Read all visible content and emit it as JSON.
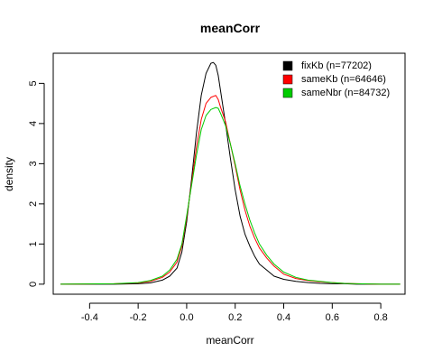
{
  "chart_data": {
    "type": "line",
    "title": "meanCorr",
    "xlabel": "meanCorr",
    "ylabel": "density",
    "xlim": [
      -0.55,
      0.9
    ],
    "ylim": [
      -0.25,
      5.75
    ],
    "x_ticks": [
      -0.4,
      -0.2,
      0.0,
      0.2,
      0.4,
      0.6,
      0.8
    ],
    "y_ticks": [
      0,
      1,
      2,
      3,
      4,
      5
    ],
    "x_tick_labels": [
      "-0.4",
      "-0.2",
      "0.0",
      "0.2",
      "0.4",
      "0.6",
      "0.8"
    ],
    "y_tick_labels": [
      "0",
      "1",
      "2",
      "3",
      "4",
      "5"
    ],
    "grid": false,
    "legend_position": "top-right",
    "series": [
      {
        "name": "fixKb (n=77202)",
        "color": "#000000",
        "x": [
          -0.52,
          -0.3,
          -0.2,
          -0.15,
          -0.1,
          -0.07,
          -0.04,
          -0.02,
          0.0,
          0.02,
          0.04,
          0.06,
          0.08,
          0.1,
          0.11,
          0.12,
          0.13,
          0.14,
          0.16,
          0.18,
          0.2,
          0.22,
          0.24,
          0.26,
          0.28,
          0.3,
          0.33,
          0.36,
          0.4,
          0.45,
          0.5,
          0.55,
          0.6,
          0.65,
          0.7,
          0.8,
          0.88
        ],
        "y": [
          0,
          0,
          0.01,
          0.03,
          0.1,
          0.2,
          0.4,
          0.8,
          1.55,
          2.6,
          3.75,
          4.7,
          5.25,
          5.5,
          5.52,
          5.45,
          5.2,
          4.8,
          4.0,
          3.15,
          2.35,
          1.7,
          1.25,
          0.95,
          0.7,
          0.5,
          0.35,
          0.2,
          0.12,
          0.07,
          0.04,
          0.02,
          0.01,
          0.01,
          0,
          0,
          0
        ]
      },
      {
        "name": "sameKb (n=64646)",
        "color": "#ff0000",
        "x": [
          -0.52,
          -0.3,
          -0.2,
          -0.15,
          -0.1,
          -0.07,
          -0.04,
          -0.02,
          0.0,
          0.02,
          0.04,
          0.06,
          0.08,
          0.1,
          0.12,
          0.13,
          0.14,
          0.16,
          0.18,
          0.2,
          0.22,
          0.24,
          0.26,
          0.28,
          0.3,
          0.33,
          0.36,
          0.4,
          0.45,
          0.5,
          0.55,
          0.6,
          0.65,
          0.7,
          0.8,
          0.88
        ],
        "y": [
          0,
          0.01,
          0.03,
          0.07,
          0.17,
          0.3,
          0.55,
          0.95,
          1.65,
          2.5,
          3.4,
          4.1,
          4.5,
          4.65,
          4.7,
          4.6,
          4.4,
          4.05,
          3.5,
          2.95,
          2.35,
          1.85,
          1.45,
          1.15,
          0.9,
          0.65,
          0.45,
          0.25,
          0.14,
          0.09,
          0.06,
          0.04,
          0.02,
          0.01,
          0,
          0
        ]
      },
      {
        "name": "sameNbr (n=84732)",
        "color": "#00cc00",
        "x": [
          -0.52,
          -0.3,
          -0.2,
          -0.15,
          -0.1,
          -0.07,
          -0.04,
          -0.02,
          0.0,
          0.02,
          0.04,
          0.06,
          0.08,
          0.1,
          0.12,
          0.13,
          0.14,
          0.16,
          0.18,
          0.2,
          0.22,
          0.24,
          0.26,
          0.28,
          0.3,
          0.33,
          0.36,
          0.4,
          0.45,
          0.5,
          0.55,
          0.6,
          0.65,
          0.7,
          0.8,
          0.88
        ],
        "y": [
          0,
          0.01,
          0.04,
          0.09,
          0.2,
          0.35,
          0.62,
          1.0,
          1.7,
          2.45,
          3.2,
          3.85,
          4.2,
          4.35,
          4.4,
          4.38,
          4.25,
          3.95,
          3.5,
          3.0,
          2.45,
          2.0,
          1.6,
          1.28,
          1.0,
          0.72,
          0.5,
          0.3,
          0.17,
          0.1,
          0.07,
          0.04,
          0.02,
          0.01,
          0,
          0
        ]
      }
    ]
  }
}
